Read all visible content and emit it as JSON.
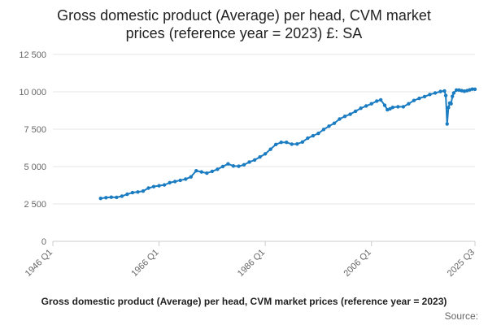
{
  "chart_data": {
    "type": "line",
    "title_lines": [
      "Gross domestic product (Average) per head, CVM market",
      "prices (reference year = 2023) £: SA"
    ],
    "footer_label": "Gross domestic product (Average) per head, CVM market prices (reference year = 2023)",
    "source_label": "Source:",
    "y_ticks": [
      "0",
      "2 500",
      "5 000",
      "7 500",
      "10 000",
      "12 500"
    ],
    "y_tick_values": [
      0,
      2500,
      5000,
      7500,
      10000,
      12500
    ],
    "x_ticks": [
      "1946 Q1",
      "1966 Q1",
      "1986 Q1",
      "2006 Q1",
      "2025 Q3"
    ],
    "x_tick_values": [
      1946.0,
      1966.0,
      1986.0,
      2006.0,
      2025.5
    ],
    "xlim": [
      1946.0,
      2025.5
    ],
    "ylim": [
      0,
      12500
    ],
    "grid": true,
    "series_color": "#1b7cc1",
    "grid_color": "#e6e6e6",
    "series": [
      {
        "name": "",
        "points": [
          [
            1955.0,
            2870
          ],
          [
            1956.0,
            2920
          ],
          [
            1957.0,
            2950
          ],
          [
            1958.0,
            2940
          ],
          [
            1959.0,
            3020
          ],
          [
            1960.0,
            3150
          ],
          [
            1961.0,
            3260
          ],
          [
            1962.0,
            3300
          ],
          [
            1963.0,
            3360
          ],
          [
            1964.0,
            3560
          ],
          [
            1965.0,
            3660
          ],
          [
            1966.0,
            3720
          ],
          [
            1967.0,
            3770
          ],
          [
            1968.0,
            3920
          ],
          [
            1969.0,
            4000
          ],
          [
            1970.0,
            4080
          ],
          [
            1971.0,
            4160
          ],
          [
            1972.0,
            4310
          ],
          [
            1973.0,
            4720
          ],
          [
            1974.0,
            4640
          ],
          [
            1975.0,
            4560
          ],
          [
            1976.0,
            4680
          ],
          [
            1977.0,
            4820
          ],
          [
            1978.0,
            5000
          ],
          [
            1979.0,
            5180
          ],
          [
            1980.0,
            5040
          ],
          [
            1981.0,
            5020
          ],
          [
            1982.0,
            5120
          ],
          [
            1983.0,
            5300
          ],
          [
            1984.0,
            5440
          ],
          [
            1985.0,
            5640
          ],
          [
            1986.0,
            5850
          ],
          [
            1987.0,
            6160
          ],
          [
            1988.0,
            6480
          ],
          [
            1989.0,
            6620
          ],
          [
            1990.0,
            6620
          ],
          [
            1991.0,
            6500
          ],
          [
            1992.0,
            6510
          ],
          [
            1993.0,
            6640
          ],
          [
            1994.0,
            6900
          ],
          [
            1995.0,
            7060
          ],
          [
            1996.0,
            7220
          ],
          [
            1997.0,
            7480
          ],
          [
            1998.0,
            7700
          ],
          [
            1999.0,
            7900
          ],
          [
            2000.0,
            8180
          ],
          [
            2001.0,
            8360
          ],
          [
            2002.0,
            8500
          ],
          [
            2003.0,
            8700
          ],
          [
            2004.0,
            8900
          ],
          [
            2005.0,
            9050
          ],
          [
            2006.0,
            9200
          ],
          [
            2007.0,
            9380
          ],
          [
            2007.75,
            9460
          ],
          [
            2008.5,
            9100
          ],
          [
            2009.0,
            8800
          ],
          [
            2009.5,
            8860
          ],
          [
            2010.0,
            8960
          ],
          [
            2011.0,
            9000
          ],
          [
            2012.0,
            9000
          ],
          [
            2013.0,
            9200
          ],
          [
            2014.0,
            9420
          ],
          [
            2015.0,
            9560
          ],
          [
            2016.0,
            9680
          ],
          [
            2017.0,
            9820
          ],
          [
            2018.0,
            9920
          ],
          [
            2019.0,
            10020
          ],
          [
            2019.75,
            10060
          ],
          [
            2020.0,
            9750
          ],
          [
            2020.25,
            7850
          ],
          [
            2020.5,
            8950
          ],
          [
            2020.75,
            9250
          ],
          [
            2021.0,
            9200
          ],
          [
            2021.25,
            9700
          ],
          [
            2021.5,
            9920
          ],
          [
            2022.0,
            10120
          ],
          [
            2022.5,
            10120
          ],
          [
            2023.0,
            10080
          ],
          [
            2023.5,
            10040
          ],
          [
            2024.0,
            10080
          ],
          [
            2024.5,
            10130
          ],
          [
            2025.0,
            10180
          ],
          [
            2025.5,
            10170
          ]
        ]
      }
    ]
  }
}
